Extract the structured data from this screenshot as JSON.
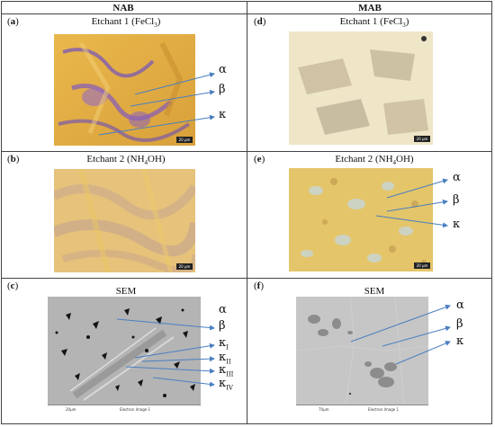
{
  "headers": {
    "left": "NAB",
    "right": "MAB"
  },
  "panels": {
    "a": {
      "letter": "a",
      "title": "Etchant 1 (FeCl3)",
      "scale": "20 µm"
    },
    "b": {
      "letter": "b",
      "title": "Etchant 2 (NH4OH)",
      "scale": "20 µm"
    },
    "c": {
      "letter": "c",
      "title": "SEM",
      "scale_label": "20µm",
      "footer": "Electron Image 1"
    },
    "d": {
      "letter": "d",
      "title": "Etchant 1 (FeCl3)",
      "scale": "20 µm"
    },
    "e": {
      "letter": "e",
      "title": "Etchant 2 (NH4OH)",
      "scale": "20 µm"
    },
    "f": {
      "letter": "f",
      "title": "SEM",
      "scale_label": "70µm",
      "footer": "Electron Image 1"
    }
  },
  "phase_labels": {
    "alpha": "α",
    "beta": "β",
    "kappa": "κ",
    "kappa_I": "I",
    "kappa_II": "II",
    "kappa_III": "III",
    "kappa_IV": "IV"
  },
  "colors": {
    "arrow": "#4a7fc1",
    "border": "#444444"
  }
}
